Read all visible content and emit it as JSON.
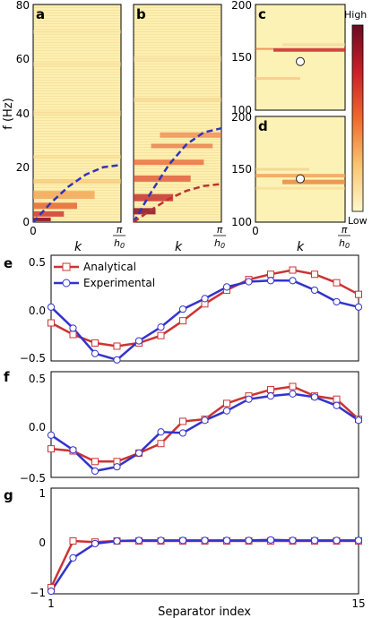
{
  "colors": {
    "analytical": "#cc3333",
    "experimental": "#3333cc",
    "disp_dark": "#3333bb",
    "disp_red": "#bb3333",
    "heat_low": "#fff7c0",
    "heat_high": "#6b0a22",
    "marker_fill": "#ffffff"
  },
  "colorbar": {
    "high_label": "High",
    "low_label": "Low"
  },
  "chart_data": [
    {
      "id": "a",
      "panel_label": "a",
      "type": "heatmap",
      "ylabel": "f (Hz)",
      "xlabel": "k",
      "ylim": [
        0,
        80
      ],
      "yticks": [
        0,
        20,
        40,
        60,
        80
      ],
      "xticks": [
        "0",
        "π/h0"
      ],
      "dispersion": [
        {
          "style": "dashed",
          "color": "#3333bb",
          "k": [
            0,
            0.2,
            0.4,
            0.6,
            0.8,
            1.0
          ],
          "f": [
            0,
            7,
            13,
            17.5,
            20.2,
            21
          ]
        }
      ],
      "bright_bands_hz": [
        10,
        6,
        3,
        1
      ]
    },
    {
      "id": "b",
      "panel_label": "b",
      "type": "heatmap",
      "xlabel": "k",
      "xticks": [
        "π/h0"
      ],
      "ylim": [
        0,
        80
      ],
      "dispersion": [
        {
          "style": "dashed",
          "color": "#3333bb",
          "k": [
            0,
            0.2,
            0.4,
            0.6,
            0.8,
            1.0
          ],
          "f": [
            0,
            11,
            21,
            28.5,
            33,
            34.5
          ]
        },
        {
          "style": "dashed",
          "color": "#bb3333",
          "k": [
            0,
            0.2,
            0.4,
            0.6,
            0.8,
            1.0
          ],
          "f": [
            0,
            4.5,
            8.5,
            11.5,
            13.3,
            14
          ]
        }
      ],
      "bright_bands_hz": [
        30,
        22,
        16,
        8,
        3
      ]
    },
    {
      "id": "c",
      "panel_label": "c",
      "type": "heatmap",
      "ylim": [
        100,
        200
      ],
      "yticks": [
        100,
        150,
        200
      ],
      "marker": {
        "k": 0.5,
        "f": 146
      },
      "bright_bands_hz": [
        157,
        130
      ]
    },
    {
      "id": "d",
      "panel_label": "d",
      "type": "heatmap",
      "ylim": [
        100,
        200
      ],
      "yticks": [
        100,
        150,
        200
      ],
      "xlabel": "k",
      "xticks": [
        "0",
        "π/h0"
      ],
      "marker": {
        "k": 0.5,
        "f": 141
      },
      "bright_bands_hz": [
        138,
        144
      ]
    },
    {
      "id": "e",
      "panel_label": "e",
      "type": "line",
      "ylim": [
        -0.5,
        0.5
      ],
      "yticks": [
        "0.5",
        "0.0",
        "−0.5"
      ],
      "x": [
        1,
        2,
        3,
        4,
        5,
        6,
        7,
        8,
        9,
        10,
        11,
        12,
        13,
        14,
        15
      ],
      "series": [
        {
          "name": "Analytical",
          "marker": "square",
          "values": [
            -0.14,
            -0.25,
            -0.33,
            -0.36,
            -0.33,
            -0.26,
            -0.12,
            0.04,
            0.17,
            0.27,
            0.32,
            0.36,
            0.32,
            0.24,
            0.13
          ]
        },
        {
          "name": "Experimental",
          "marker": "circle",
          "values": [
            0.01,
            -0.19,
            -0.43,
            -0.49,
            -0.31,
            -0.18,
            -0.01,
            0.09,
            0.2,
            0.25,
            0.26,
            0.26,
            0.17,
            0.06,
            0.01
          ]
        }
      ],
      "legend": "top-left"
    },
    {
      "id": "f",
      "panel_label": "f",
      "type": "line",
      "ylim": [
        -0.5,
        0.5
      ],
      "yticks": [
        "0.5",
        "0.0",
        "−0.5"
      ],
      "x": [
        1,
        2,
        3,
        4,
        5,
        6,
        7,
        8,
        9,
        10,
        11,
        12,
        13,
        14,
        15
      ],
      "series": [
        {
          "name": "Analytical",
          "marker": "square",
          "values": [
            -0.23,
            -0.25,
            -0.35,
            -0.35,
            -0.27,
            -0.18,
            0.03,
            0.05,
            0.2,
            0.27,
            0.33,
            0.36,
            0.27,
            0.24,
            0.05
          ]
        },
        {
          "name": "Experimental",
          "marker": "circle",
          "values": [
            -0.1,
            -0.24,
            -0.44,
            -0.4,
            -0.27,
            -0.07,
            -0.08,
            0.04,
            0.13,
            0.24,
            0.27,
            0.29,
            0.26,
            0.18,
            0.04
          ]
        }
      ]
    },
    {
      "id": "g",
      "panel_label": "g",
      "type": "line",
      "ylim": [
        -1,
        1
      ],
      "yticks": [
        "1",
        "0",
        "−1"
      ],
      "xlabel": "Separator index",
      "xticks": [
        "1",
        "15"
      ],
      "x": [
        1,
        2,
        3,
        4,
        5,
        6,
        7,
        8,
        9,
        10,
        11,
        12,
        13,
        14,
        15
      ],
      "series": [
        {
          "name": "Analytical",
          "marker": "square",
          "values": [
            -0.88,
            0.0,
            -0.02,
            0.0,
            0.0,
            0.0,
            0.0,
            0.0,
            0.0,
            0.0,
            0.0,
            0.0,
            0.0,
            0.0,
            0.0
          ]
        },
        {
          "name": "Experimental",
          "marker": "circle",
          "values": [
            -0.95,
            -0.32,
            -0.05,
            0.0,
            0.01,
            0.01,
            0.01,
            0.01,
            0.01,
            0.01,
            0.02,
            0.01,
            0.01,
            0.01,
            0.01
          ]
        }
      ]
    }
  ]
}
